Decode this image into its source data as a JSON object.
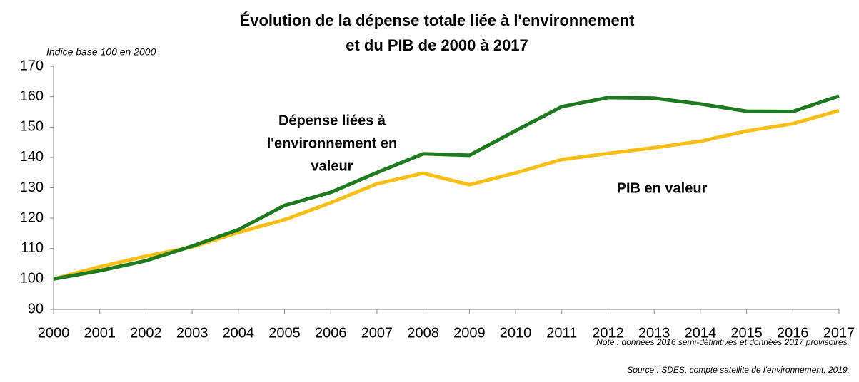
{
  "chart_data": {
    "type": "line",
    "title": [
      "Évolution de la dépense totale liée à l'environnement",
      "et du PIB de 2000 à 2017"
    ],
    "subtitle": "Indice base 100 en 2000",
    "x": [
      2000,
      2001,
      2002,
      2003,
      2004,
      2005,
      2006,
      2007,
      2008,
      2009,
      2010,
      2011,
      2012,
      2013,
      2014,
      2015,
      2016,
      2017
    ],
    "xlim": [
      2000,
      2017
    ],
    "xticks": [
      2000,
      2001,
      2002,
      2003,
      2004,
      2005,
      2006,
      2007,
      2008,
      2009,
      2010,
      2011,
      2012,
      2013,
      2014,
      2015,
      2016,
      2017
    ],
    "ylim": [
      90,
      170
    ],
    "yticks": [
      90,
      100,
      110,
      120,
      130,
      140,
      150,
      160,
      170
    ],
    "grid": false,
    "series": [
      {
        "name": "PIB en valeur",
        "color": "#f9be16",
        "values": [
          100,
          104,
          107.5,
          110.5,
          115.3,
          119.5,
          125.1,
          131.3,
          134.8,
          131,
          134.9,
          139.3,
          141.3,
          143.2,
          145.3,
          148.7,
          151.1,
          155.4
        ]
      },
      {
        "name": "Dépense liées à l'environnement en valeur",
        "color": "#1f7a1f",
        "values": [
          100,
          102.7,
          106,
          110.8,
          116.2,
          124.2,
          128.5,
          135,
          141.2,
          140.7,
          148.8,
          156.7,
          159.7,
          159.5,
          157.6,
          155.2,
          155.1,
          160.2
        ]
      }
    ],
    "annotations": [
      {
        "lines": [
          "Dépense liées à",
          "l'environnement en",
          "valeur"
        ]
      },
      {
        "lines": [
          "PIB en valeur"
        ]
      }
    ],
    "notes": [
      "Note : données 2016 semi-définitives et données 2017 provisoires.",
      "Source : SDES, compte satellite de l'environnement, 2019."
    ]
  }
}
